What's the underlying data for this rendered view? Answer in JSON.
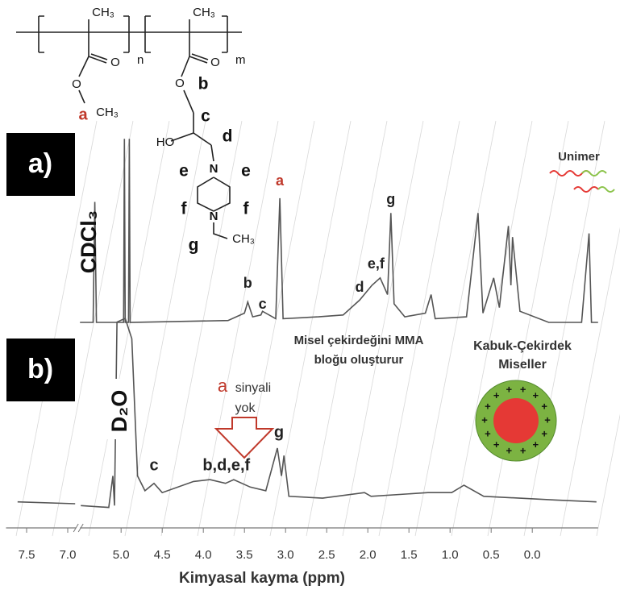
{
  "chart_data": [
    {
      "type": "line",
      "label": "a)",
      "color": "#555555",
      "peak_labels": [
        "b",
        "c",
        "a",
        "d",
        "e,f",
        "g"
      ],
      "xlim": [
        7.75,
        -0.8
      ],
      "xbreak": [
        6.9,
        5.5
      ],
      "ylim": [
        0,
        100
      ],
      "x": [
        5.5,
        5.34,
        5.32,
        5.3,
        4.97,
        4.96,
        4.95,
        4.91,
        4.9,
        4.89,
        3.7,
        3.5,
        3.46,
        3.4,
        3.3,
        3.28,
        3.12,
        3.07,
        3.03,
        2.6,
        2.3,
        2.1,
        1.95,
        1.85,
        1.76,
        1.72,
        1.68,
        1.55,
        1.3,
        1.23,
        1.18,
        0.8,
        0.66,
        0.6,
        0.47,
        0.4,
        0.29,
        0.26,
        0.24,
        0.15,
        -0.2,
        -0.6,
        -0.69,
        -0.72,
        -0.8
      ],
      "values": [
        0,
        0,
        65,
        0,
        0,
        99,
        0,
        0,
        99,
        0,
        1,
        5,
        11,
        3,
        4,
        6,
        2,
        67,
        2,
        3,
        4,
        12,
        20,
        24,
        15,
        59,
        10,
        3,
        5,
        15,
        2,
        3,
        59,
        5,
        24,
        8,
        52,
        20,
        46,
        6,
        0,
        0,
        48,
        0,
        0
      ]
    },
    {
      "type": "line",
      "label": "b)",
      "color": "#555555",
      "peak_labels": [
        "c",
        "b,d,e,f",
        "g"
      ],
      "xlim": [
        7.75,
        -0.8
      ],
      "xbreak": [
        6.9,
        5.5
      ],
      "ylim": [
        0,
        100
      ],
      "x": [
        7.61,
        6.91,
        null,
        5.49,
        5.15,
        5.1,
        5.08,
        5.05,
        4.95,
        4.87,
        4.8,
        4.71,
        4.6,
        4.5,
        4.12,
        3.92,
        3.73,
        3.63,
        3.43,
        3.24,
        3.1,
        3.05,
        3.02,
        2.96,
        2.55,
        2.04,
        1.96,
        1.27,
        0.98,
        0.83,
        0.59,
        -0.29,
        -0.78
      ],
      "values": [
        1,
        0,
        null,
        -1,
        -2,
        15,
        -1,
        98,
        100,
        89,
        15,
        7,
        11,
        6,
        12,
        13,
        11,
        13,
        9,
        7,
        30,
        15,
        26,
        4,
        3,
        6,
        4,
        6,
        6,
        10,
        4,
        2,
        1
      ],
      "xlabel": "Kimyasal kayma (ppm)",
      "xticks": [
        7.5,
        {
          "value": 7,
          "label": "7.0"
        },
        {
          "value": 5,
          "label": "5.0"
        },
        4.5,
        {
          "value": 4,
          "label": "4.0"
        },
        3.5,
        {
          "value": 3,
          "label": "3.0"
        },
        2.5,
        {
          "value": 2,
          "label": "2.0"
        },
        1.5,
        {
          "value": 1,
          "label": "1.0"
        },
        0.5,
        {
          "value": 0,
          "label": "0.0"
        }
      ]
    }
  ],
  "annotations": {
    "cdcl3": "CDCl₃",
    "d2o": "D₂O",
    "unimer": "Unimer",
    "core_note": [
      "Misel çekirdeğini MMA",
      "bloğu oluşturur"
    ],
    "shell_core": [
      "Kabuk-Çekirdek",
      "Miseller"
    ],
    "no_signal": [
      "a",
      "sinyali",
      "yok"
    ]
  },
  "structure": {
    "labels": [
      "CH₃",
      "O",
      "O",
      "n",
      "a",
      "CH₃",
      "CH₃",
      "O",
      "O",
      "m",
      "b",
      "c",
      "HO",
      "d",
      "N",
      "e",
      "e",
      "f",
      "f",
      "N",
      "g",
      "CH₃"
    ]
  }
}
